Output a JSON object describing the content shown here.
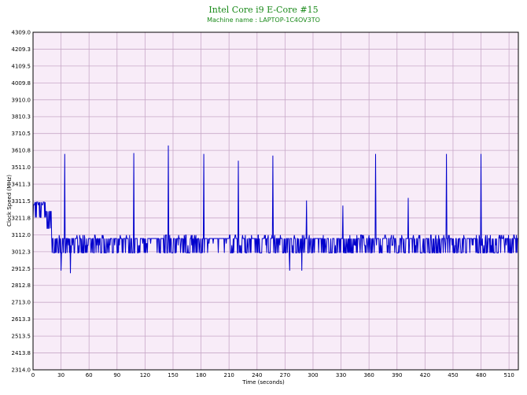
{
  "chart_data": {
    "type": "line",
    "title": "Intel Core i9 E-Core #15",
    "subtitle": "Machine name : LAPTOP-1C4OV3TO",
    "xlabel": "Time (seconds)",
    "ylabel": "Clock Speed (MHz)",
    "xlim": [
      0,
      520
    ],
    "ylim": [
      2314.0,
      4309.0
    ],
    "x_ticks": [
      "0",
      "30",
      "60",
      "90",
      "120",
      "150",
      "180",
      "210",
      "240",
      "270",
      "300",
      "330",
      "360",
      "390",
      "420",
      "450",
      "480",
      "510"
    ],
    "y_ticks": [
      "4309.0",
      "4209.3",
      "4109.5",
      "4009.8",
      "3910.0",
      "3810.3",
      "3710.5",
      "3610.8",
      "3511.0",
      "3411.3",
      "3311.5",
      "3211.8",
      "3112.0",
      "3012.3",
      "2912.5",
      "2812.8",
      "2713.0",
      "2613.3",
      "2513.5",
      "2413.8",
      "2314.0"
    ],
    "grid": true,
    "colors": {
      "plot_bg": "#f8ecf8",
      "grid": "#c8a8c8",
      "series": "#0000cc",
      "title": "#1a8a1a"
    },
    "series": [
      {
        "name": "",
        "base": 3090,
        "low": 3005,
        "high": 3305,
        "spikes": [
          {
            "x": 34,
            "y": 3590
          },
          {
            "x": 108,
            "y": 3595
          },
          {
            "x": 145,
            "y": 3640
          },
          {
            "x": 183,
            "y": 3590
          },
          {
            "x": 220,
            "y": 3550
          },
          {
            "x": 257,
            "y": 3580
          },
          {
            "x": 293,
            "y": 3315
          },
          {
            "x": 332,
            "y": 3285
          },
          {
            "x": 367,
            "y": 3590
          },
          {
            "x": 402,
            "y": 3330
          },
          {
            "x": 443,
            "y": 3590
          },
          {
            "x": 480,
            "y": 3590
          }
        ],
        "dips": [
          {
            "x": 30,
            "y": 2900
          },
          {
            "x": 40,
            "y": 2885
          },
          {
            "x": 275,
            "y": 2900
          },
          {
            "x": 288,
            "y": 2900
          }
        ]
      }
    ]
  }
}
